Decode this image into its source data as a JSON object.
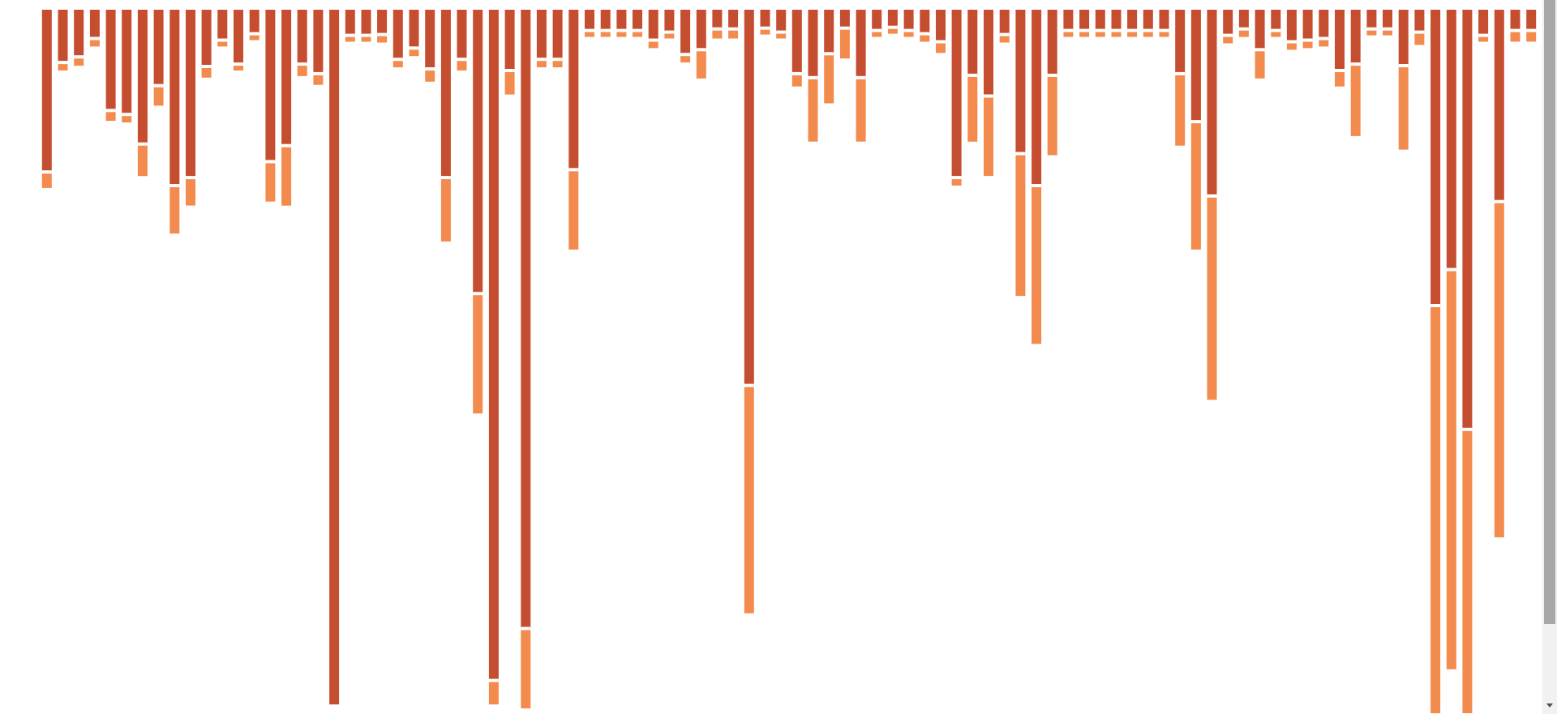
{
  "colors": {
    "primary_segment": "#c44e2f",
    "secondary_segment": "#f28b4d",
    "gap": "#ffffff",
    "scrollbar_track": "#f1f1f1",
    "scrollbar_thumb": "#a8a8a8"
  },
  "chart_data": {
    "type": "bar",
    "orientation": "vertical-downward",
    "stacked": true,
    "grid": false,
    "legend": "none",
    "ylim": [
      0,
      881
    ],
    "value_units": "pixels-from-top-proxy",
    "series": [
      {
        "values": [
          203,
          66,
          59,
          36,
          126,
          131,
          168,
          95,
          220,
          210,
          71,
          38,
          68,
          30,
          190,
          170,
          68,
          80,
          869,
          32,
          32,
          31,
          62,
          48,
          74,
          210,
          62,
          355,
          839,
          76,
          774,
          62,
          62,
          200,
          26,
          26,
          26,
          26,
          38,
          28,
          56,
          50,
          24,
          24,
          470,
          23,
          28,
          80,
          85,
          55,
          23,
          85,
          26,
          22,
          26,
          30,
          40,
          210,
          82,
          108,
          31,
          180,
          220,
          82,
          26,
          26,
          26,
          26,
          26,
          26,
          26,
          80,
          140,
          233,
          32,
          24,
          50,
          26,
          40,
          38,
          36,
          76,
          68,
          24,
          24,
          70,
          28,
          370,
          325,
          525,
          32,
          240,
          26,
          26
        ]
      },
      {
        "values": [
          20,
          10,
          11,
          10,
          13,
          10,
          40,
          25,
          60,
          35,
          14,
          8,
          8,
          8,
          50,
          75,
          15,
          14,
          0,
          8,
          8,
          10,
          10,
          10,
          16,
          80,
          14,
          150,
          30,
          30,
          100,
          10,
          10,
          100,
          8,
          8,
          8,
          8,
          10,
          8,
          10,
          36,
          12,
          12,
          285,
          8,
          8,
          16,
          80,
          62,
          38,
          80,
          8,
          8,
          8,
          10,
          14,
          10,
          83,
          100,
          10,
          178,
          198,
          100,
          8,
          8,
          8,
          8,
          8,
          8,
          8,
          90,
          160,
          255,
          10,
          10,
          36,
          8,
          10,
          10,
          10,
          20,
          90,
          8,
          8,
          105,
          16,
          510,
          500,
          355,
          8,
          420,
          14,
          14
        ]
      }
    ]
  }
}
